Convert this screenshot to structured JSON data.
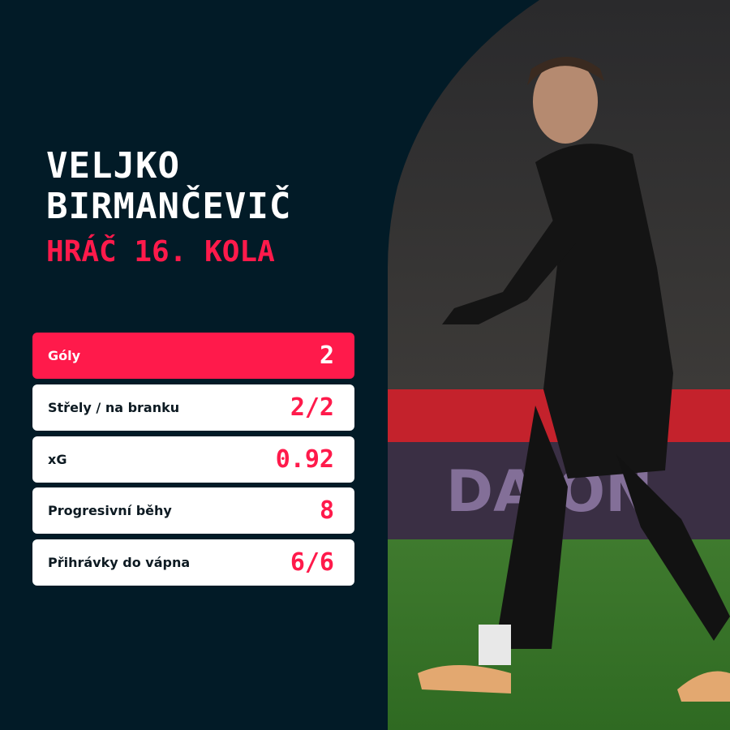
{
  "player": {
    "first_name": "VELJKO",
    "last_name": "BIRMANČEVIČ",
    "title": "HRÁČ 16. KOLA"
  },
  "stats": [
    {
      "label": "Góly",
      "value": "2",
      "highlight": true
    },
    {
      "label": "Střely / na branku",
      "value": "2/2",
      "highlight": false
    },
    {
      "label": "xG",
      "value": "0.92",
      "highlight": false
    },
    {
      "label": "Progresivní běhy",
      "value": "8",
      "highlight": false
    },
    {
      "label": "Přihrávky do vápna",
      "value": "6/6",
      "highlight": false
    }
  ],
  "colors": {
    "background": "#021b27",
    "accent": "#ff1a4b",
    "card": "#ffffff"
  }
}
